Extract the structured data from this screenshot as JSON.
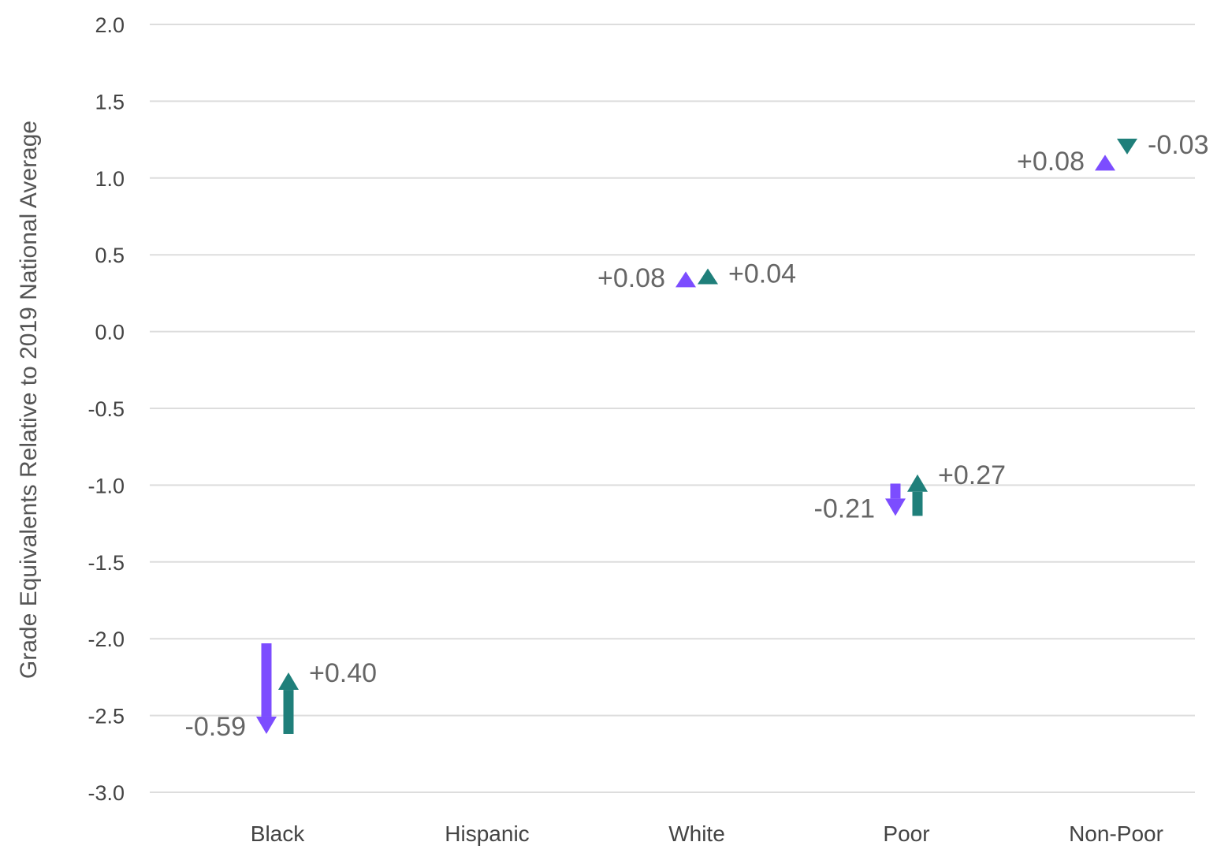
{
  "chart_data": {
    "type": "arrow",
    "title": "",
    "ylabel": "Grade Equivalents Relative to 2019 National Average",
    "xlabel": "",
    "ylim": [
      -3.0,
      2.0
    ],
    "yticks": [
      "2.0",
      "1.5",
      "1.0",
      "0.5",
      "0.0",
      "-0.5",
      "-1.0",
      "-1.5",
      "-2.0",
      "-2.5",
      "-3.0"
    ],
    "ytick_values": [
      2.0,
      1.5,
      1.0,
      0.5,
      0.0,
      -0.5,
      -1.0,
      -1.5,
      -2.0,
      -2.5,
      -3.0
    ],
    "grid": true,
    "categories": [
      "Black",
      "Hispanic",
      "White",
      "Poor",
      "Non-Poor"
    ],
    "colors": {
      "first": "#7c4dff",
      "second": "#1f7f7a"
    },
    "groups": [
      {
        "category": "Black",
        "arrows": [
          {
            "series": "first",
            "start": -2.03,
            "end": -2.62,
            "label": "-0.59"
          },
          {
            "series": "second",
            "start": -2.62,
            "end": -2.22,
            "label": "+0.40"
          }
        ]
      },
      {
        "category": "Hispanic",
        "arrows": []
      },
      {
        "category": "White",
        "arrows": [
          {
            "series": "first",
            "start": 0.3,
            "end": 0.38,
            "label": "+0.08"
          },
          {
            "series": "second",
            "start": 0.34,
            "end": 0.38,
            "label": "+0.04"
          }
        ]
      },
      {
        "category": "Poor",
        "arrows": [
          {
            "series": "first",
            "start": -0.99,
            "end": -1.2,
            "label": "-0.21"
          },
          {
            "series": "second",
            "start": -1.2,
            "end": -0.93,
            "label": "+0.27"
          }
        ]
      },
      {
        "category": "Non-Poor",
        "arrows": [
          {
            "series": "first",
            "start": 1.06,
            "end": 1.14,
            "label": "+0.08"
          },
          {
            "series": "second",
            "start": 1.22,
            "end": 1.19,
            "label": "-0.03"
          }
        ]
      }
    ]
  }
}
